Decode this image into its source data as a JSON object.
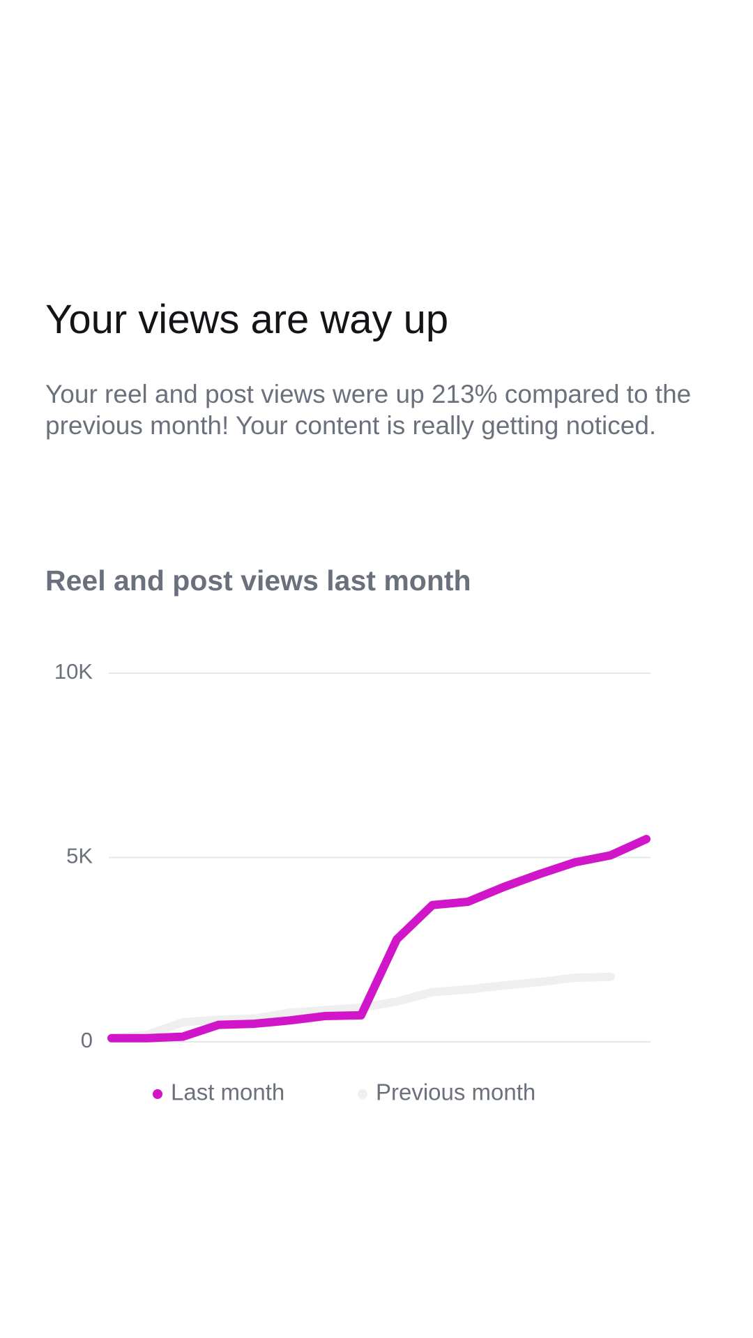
{
  "header": {
    "title": "Your views are way up",
    "body": "Your reel and post views were up 213% compared to the previous month! Your content is really getting noticed."
  },
  "chart_data": {
    "type": "line",
    "title": "Reel and post views last month",
    "series": [
      {
        "name": "Last month",
        "color": "#d016c8",
        "values": [
          100,
          100,
          140,
          460,
          490,
          580,
          700,
          720,
          2780,
          3710,
          3800,
          4200,
          4550,
          4870,
          5060,
          5500
        ]
      },
      {
        "name": "Previous month",
        "color": "#efefef",
        "values": [
          100,
          190,
          530,
          600,
          630,
          790,
          860,
          930,
          1090,
          1350,
          1420,
          1530,
          1620,
          1740,
          1760,
          null
        ]
      }
    ],
    "ylim": [
      0,
      10000
    ],
    "yticks": [
      0,
      {
        "value": 5000,
        "label": "5K"
      },
      {
        "value": 10000,
        "label": "10K"
      }
    ],
    "grid": true,
    "legend": "bottom"
  }
}
